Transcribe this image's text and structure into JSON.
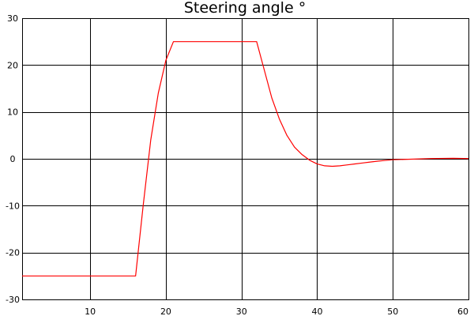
{
  "chart_data": {
    "type": "line",
    "title": "Steering angle °",
    "xlabel": "",
    "ylabel": "",
    "xlim": [
      1,
      60
    ],
    "ylim": [
      -30,
      30
    ],
    "x_ticks": [
      10,
      20,
      30,
      40,
      50,
      60
    ],
    "y_ticks": [
      -30,
      -20,
      -10,
      0,
      10,
      20,
      30
    ],
    "grid": true,
    "line_color": "#ff0000",
    "series": [
      {
        "x": [
          1,
          16,
          17,
          18,
          19,
          20,
          21,
          32,
          33,
          34,
          35,
          36,
          37,
          38,
          39,
          40,
          41,
          42,
          43,
          44,
          45,
          46,
          47,
          48,
          49,
          50,
          52,
          55,
          58,
          60
        ],
        "values": [
          -25,
          -25,
          -10,
          4,
          14,
          21,
          25,
          25,
          19,
          13,
          8.5,
          5,
          2.5,
          0.9,
          -0.3,
          -1.1,
          -1.5,
          -1.6,
          -1.5,
          -1.3,
          -1.1,
          -0.9,
          -0.7,
          -0.5,
          -0.35,
          -0.2,
          -0.1,
          0.05,
          0.1,
          0.05
        ]
      }
    ]
  }
}
